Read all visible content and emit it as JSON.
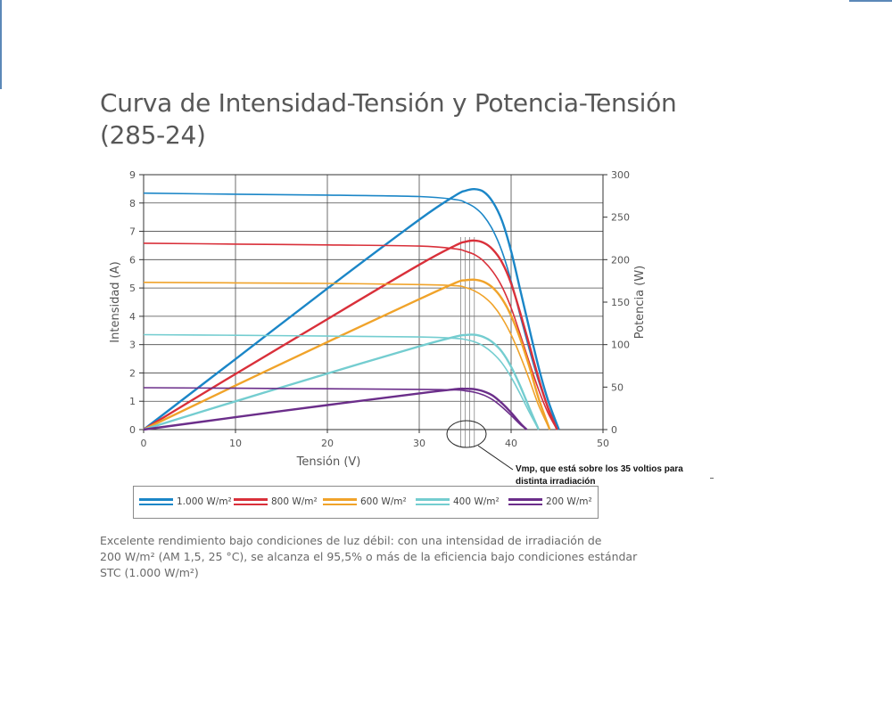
{
  "title_line1": "Curva de Intensidad-Tensión y Potencia-Tensión",
  "title_line2": "(285-24)",
  "annotation_line1": "Vmp, que está sobre los 35 voltios para",
  "annotation_line2": "distinta irradiación",
  "footer_lines": [
    "Excelente rendimiento bajo condiciones de luz débil: con una intensidad de irradiación de",
    "200 W/m² (AM 1,5, 25 °C), se alcanza el 95,5% o más de la eficiencia bajo condiciones estándar",
    "STC (1.000 W/m²)"
  ],
  "legend": [
    {
      "label": "1.000 W/m²",
      "color": "#1b86c7"
    },
    {
      "label": "800 W/m²",
      "color": "#d9303a"
    },
    {
      "label": "600 W/m²",
      "color": "#f0a32a"
    },
    {
      "label": "400 W/m²",
      "color": "#74cdd0"
    },
    {
      "label": "200 W/m²",
      "color": "#6b2e8a"
    }
  ],
  "chart_data": {
    "type": "line",
    "xlabel": "Tensión (V)",
    "ylabel": "Intensidad (A)",
    "y2label": "Potencia (W)",
    "xlim": [
      0,
      50
    ],
    "ylim": [
      0,
      9
    ],
    "y2lim": [
      0,
      300
    ],
    "xticks": [
      0,
      10,
      20,
      30,
      40,
      50
    ],
    "yticks": [
      0,
      1,
      2,
      3,
      4,
      5,
      6,
      7,
      8,
      9
    ],
    "y2ticks": [
      0,
      50,
      100,
      150,
      200,
      250,
      300
    ],
    "grid": true,
    "series": [
      {
        "name": "1.000 W/m²",
        "color": "#1b86c7",
        "current": {
          "x": [
            0,
            10,
            20,
            30,
            34,
            35,
            36,
            37,
            38,
            39,
            40,
            41,
            42,
            43,
            44,
            45.2
          ],
          "y": [
            8.35,
            8.31,
            8.28,
            8.23,
            8.12,
            8.02,
            7.85,
            7.55,
            7.05,
            6.3,
            5.25,
            4.0,
            2.8,
            1.7,
            0.8,
            0
          ]
        },
        "power": {
          "x": [
            0,
            10,
            20,
            30,
            34,
            35,
            36,
            37,
            38,
            39,
            40,
            41,
            42,
            43,
            44,
            45.2
          ],
          "y": [
            0,
            83,
            166,
            247,
            276,
            281,
            283,
            280,
            268,
            246,
            210,
            164,
            118,
            73,
            35,
            0
          ]
        }
      },
      {
        "name": "800 W/m²",
        "color": "#d9303a",
        "current": {
          "x": [
            0,
            10,
            20,
            30,
            34,
            35,
            36,
            37,
            38,
            39,
            40,
            41,
            42,
            43,
            44,
            45
          ],
          "y": [
            6.58,
            6.55,
            6.52,
            6.48,
            6.38,
            6.3,
            6.18,
            5.95,
            5.58,
            5.05,
            4.3,
            3.35,
            2.35,
            1.4,
            0.6,
            0
          ]
        },
        "power": {
          "x": [
            0,
            10,
            20,
            30,
            34,
            35,
            36,
            37,
            38,
            39,
            40,
            41,
            42,
            43,
            44,
            45
          ],
          "y": [
            0,
            65.5,
            130,
            194,
            217,
            221,
            222.5,
            220,
            212,
            197,
            172,
            137,
            99,
            60,
            26,
            0
          ]
        }
      },
      {
        "name": "600 W/m²",
        "color": "#f0a32a",
        "current": {
          "x": [
            0,
            10,
            20,
            30,
            34,
            35,
            36,
            37,
            38,
            39,
            40,
            41,
            42,
            43,
            44.2
          ],
          "y": [
            5.2,
            5.18,
            5.16,
            5.12,
            5.08,
            5.02,
            4.9,
            4.7,
            4.4,
            3.95,
            3.35,
            2.6,
            1.75,
            0.85,
            0
          ]
        },
        "power": {
          "x": [
            0,
            10,
            20,
            30,
            34,
            35,
            36,
            37,
            38,
            39,
            40,
            41,
            42,
            43,
            44.2
          ],
          "y": [
            0,
            51.8,
            103,
            153.5,
            173,
            175.7,
            176.4,
            174,
            167,
            154,
            134,
            106.6,
            73.5,
            36.5,
            0
          ]
        }
      },
      {
        "name": "400 W/m²",
        "color": "#74cdd0",
        "current": {
          "x": [
            0,
            10,
            20,
            30,
            34,
            35,
            36,
            37,
            38,
            39,
            40,
            41,
            42,
            43
          ],
          "y": [
            3.35,
            3.33,
            3.3,
            3.27,
            3.22,
            3.18,
            3.1,
            2.95,
            2.7,
            2.35,
            1.85,
            1.25,
            0.6,
            0
          ]
        },
        "power": {
          "x": [
            0,
            10,
            20,
            30,
            34,
            35,
            36,
            37,
            38,
            39,
            40,
            41,
            42,
            43
          ],
          "y": [
            0,
            33.3,
            66,
            98,
            109.5,
            111.3,
            111.6,
            109,
            102.6,
            91.6,
            74,
            51,
            25,
            0
          ]
        }
      },
      {
        "name": "200 W/m²",
        "color": "#6b2e8a",
        "current": {
          "x": [
            0,
            10,
            20,
            30,
            34,
            35,
            36,
            37,
            38,
            39,
            40,
            41,
            41.7
          ],
          "y": [
            1.48,
            1.46,
            1.44,
            1.42,
            1.4,
            1.37,
            1.32,
            1.22,
            1.05,
            0.8,
            0.5,
            0.18,
            0
          ]
        },
        "power": {
          "x": [
            0,
            10,
            20,
            30,
            34,
            35,
            36,
            37,
            38,
            39,
            40,
            41,
            41.7
          ],
          "y": [
            0,
            14.6,
            28.8,
            42.6,
            47.6,
            48,
            47.5,
            45,
            40,
            31,
            20,
            7.4,
            0
          ]
        }
      }
    ],
    "vmp_markers": [
      34.5,
      35.0,
      35.5,
      36.0
    ],
    "annotation": "Vmp, que está sobre los 35 voltios para distinta irradiación"
  }
}
